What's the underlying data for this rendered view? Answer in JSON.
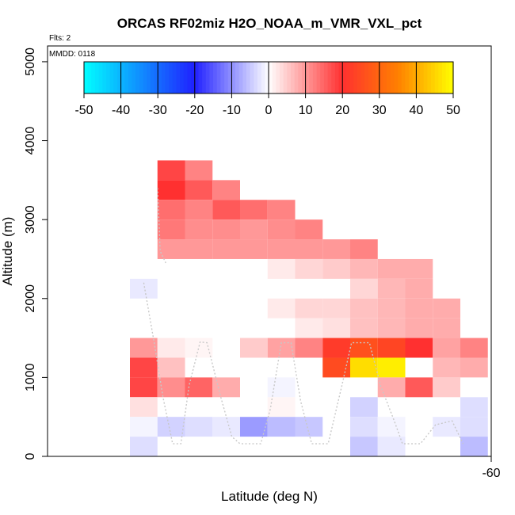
{
  "chart_data": {
    "type": "heatmap",
    "title": "ORCAS RF02miz H2O_NOAA_m_VMR_VXL_pct",
    "flights_note": "Flts: 2",
    "date_note": "MMDD: 0118",
    "xlabel": "Latitude (deg N)",
    "ylabel": "Altitude (m)",
    "x_ticks": [
      "-60"
    ],
    "y_ticks": [
      0,
      1000,
      2000,
      3000,
      4000,
      5000
    ],
    "ylim": [
      0,
      5200
    ],
    "colorbar": {
      "range": [
        -50,
        50
      ],
      "ticks": [
        -50,
        -40,
        -30,
        -20,
        -10,
        0,
        10,
        20,
        30,
        40,
        50
      ],
      "colors": {
        "low": "#00ffff",
        "mid_low": "#2020ff",
        "zero": "#ffffff",
        "mid_high": "#ff3030",
        "orange": "#ff8000",
        "high": "#ffff00"
      }
    },
    "column_count": 13,
    "altitude_bin_m": 250,
    "cells": [
      {
        "col": 1,
        "alt": 3500,
        "value": 18
      },
      {
        "col": 2,
        "alt": 3500,
        "value": 12
      },
      {
        "col": 1,
        "alt": 3250,
        "value": 20
      },
      {
        "col": 2,
        "alt": 3250,
        "value": 16
      },
      {
        "col": 3,
        "alt": 3250,
        "value": 12
      },
      {
        "col": 1,
        "alt": 3000,
        "value": 14
      },
      {
        "col": 2,
        "alt": 3000,
        "value": 12
      },
      {
        "col": 3,
        "alt": 3000,
        "value": 16
      },
      {
        "col": 4,
        "alt": 3000,
        "value": 14
      },
      {
        "col": 5,
        "alt": 3000,
        "value": 12
      },
      {
        "col": 1,
        "alt": 2750,
        "value": 13
      },
      {
        "col": 2,
        "alt": 2750,
        "value": 11
      },
      {
        "col": 3,
        "alt": 2750,
        "value": 11
      },
      {
        "col": 4,
        "alt": 2750,
        "value": 10
      },
      {
        "col": 5,
        "alt": 2750,
        "value": 11
      },
      {
        "col": 6,
        "alt": 2750,
        "value": 12
      },
      {
        "col": 1,
        "alt": 2500,
        "value": 10
      },
      {
        "col": 2,
        "alt": 2500,
        "value": 10
      },
      {
        "col": 3,
        "alt": 2500,
        "value": 10
      },
      {
        "col": 4,
        "alt": 2500,
        "value": 10
      },
      {
        "col": 5,
        "alt": 2500,
        "value": 10
      },
      {
        "col": 6,
        "alt": 2500,
        "value": 10
      },
      {
        "col": 7,
        "alt": 2500,
        "value": 10
      },
      {
        "col": 8,
        "alt": 2500,
        "value": 12
      },
      {
        "col": 5,
        "alt": 2250,
        "value": 2
      },
      {
        "col": 6,
        "alt": 2250,
        "value": 4
      },
      {
        "col": 7,
        "alt": 2250,
        "value": 5
      },
      {
        "col": 8,
        "alt": 2250,
        "value": 7
      },
      {
        "col": 9,
        "alt": 2250,
        "value": 8
      },
      {
        "col": 10,
        "alt": 2250,
        "value": 8
      },
      {
        "col": 0,
        "alt": 2000,
        "value": -2
      },
      {
        "col": 8,
        "alt": 2000,
        "value": 4
      },
      {
        "col": 9,
        "alt": 2000,
        "value": 7
      },
      {
        "col": 10,
        "alt": 2000,
        "value": 8
      },
      {
        "col": 5,
        "alt": 1750,
        "value": 2
      },
      {
        "col": 6,
        "alt": 1750,
        "value": 4
      },
      {
        "col": 7,
        "alt": 1750,
        "value": 4
      },
      {
        "col": 8,
        "alt": 1750,
        "value": 6
      },
      {
        "col": 9,
        "alt": 1750,
        "value": 7
      },
      {
        "col": 10,
        "alt": 1750,
        "value": 8
      },
      {
        "col": 11,
        "alt": 1750,
        "value": 8
      },
      {
        "col": 6,
        "alt": 1500,
        "value": 2
      },
      {
        "col": 7,
        "alt": 1500,
        "value": 3
      },
      {
        "col": 8,
        "alt": 1500,
        "value": 6
      },
      {
        "col": 9,
        "alt": 1500,
        "value": 7
      },
      {
        "col": 10,
        "alt": 1500,
        "value": 8
      },
      {
        "col": 11,
        "alt": 1500,
        "value": 8
      },
      {
        "col": 0,
        "alt": 1250,
        "value": 10
      },
      {
        "col": 1,
        "alt": 1250,
        "value": 2
      },
      {
        "col": 2,
        "alt": 1250,
        "value": 1
      },
      {
        "col": 4,
        "alt": 1250,
        "value": 5
      },
      {
        "col": 5,
        "alt": 1250,
        "value": 9
      },
      {
        "col": 6,
        "alt": 1250,
        "value": 12
      },
      {
        "col": 7,
        "alt": 1250,
        "value": 22
      },
      {
        "col": 8,
        "alt": 1250,
        "value": 26
      },
      {
        "col": 9,
        "alt": 1250,
        "value": 24
      },
      {
        "col": 10,
        "alt": 1250,
        "value": 20
      },
      {
        "col": 11,
        "alt": 1250,
        "value": 9
      },
      {
        "col": 12,
        "alt": 1250,
        "value": 12
      },
      {
        "col": 0,
        "alt": 1000,
        "value": 18
      },
      {
        "col": 1,
        "alt": 1000,
        "value": 6
      },
      {
        "col": 7,
        "alt": 1000,
        "value": 25
      },
      {
        "col": 8,
        "alt": 1000,
        "value": 46
      },
      {
        "col": 9,
        "alt": 1000,
        "value": 48
      },
      {
        "col": 11,
        "alt": 1000,
        "value": 7
      },
      {
        "col": 12,
        "alt": 1000,
        "value": 8
      },
      {
        "col": 0,
        "alt": 750,
        "value": 18
      },
      {
        "col": 1,
        "alt": 750,
        "value": 11
      },
      {
        "col": 2,
        "alt": 750,
        "value": 15
      },
      {
        "col": 3,
        "alt": 750,
        "value": 8
      },
      {
        "col": 5,
        "alt": 750,
        "value": -1
      },
      {
        "col": 9,
        "alt": 750,
        "value": 8
      },
      {
        "col": 10,
        "alt": 750,
        "value": 16
      },
      {
        "col": 11,
        "alt": 750,
        "value": 5
      },
      {
        "col": 0,
        "alt": 500,
        "value": 3
      },
      {
        "col": 5,
        "alt": 500,
        "value": 1
      },
      {
        "col": 8,
        "alt": 500,
        "value": -4
      },
      {
        "col": 12,
        "alt": 500,
        "value": -3
      },
      {
        "col": 0,
        "alt": 250,
        "value": -1
      },
      {
        "col": 1,
        "alt": 250,
        "value": -4
      },
      {
        "col": 2,
        "alt": 250,
        "value": -3
      },
      {
        "col": 3,
        "alt": 250,
        "value": -2
      },
      {
        "col": 4,
        "alt": 250,
        "value": -9
      },
      {
        "col": 5,
        "alt": 250,
        "value": -6
      },
      {
        "col": 6,
        "alt": 250,
        "value": -5
      },
      {
        "col": 8,
        "alt": 250,
        "value": -3
      },
      {
        "col": 9,
        "alt": 250,
        "value": -1
      },
      {
        "col": 11,
        "alt": 250,
        "value": -2
      },
      {
        "col": 12,
        "alt": 250,
        "value": -3
      },
      {
        "col": 0,
        "alt": 0,
        "value": -3
      },
      {
        "col": 8,
        "alt": 0,
        "value": -5
      },
      {
        "col": 9,
        "alt": 0,
        "value": -2
      },
      {
        "col": 12,
        "alt": 0,
        "value": -6
      }
    ],
    "flight_track": {
      "color": "#c8c8c8",
      "points": [
        [
          0.5,
          2200
        ],
        [
          0.9,
          1400
        ],
        [
          1.2,
          750
        ],
        [
          1.55,
          160
        ],
        [
          1.85,
          160
        ],
        [
          2.15,
          900
        ],
        [
          2.55,
          1450
        ],
        [
          2.8,
          1440
        ],
        [
          3.3,
          750
        ],
        [
          3.7,
          250
        ],
        [
          4.0,
          160
        ],
        [
          4.75,
          160
        ],
        [
          5.1,
          600
        ],
        [
          5.5,
          1440
        ],
        [
          5.85,
          1440
        ],
        [
          6.2,
          700
        ],
        [
          6.6,
          160
        ],
        [
          7.2,
          160
        ],
        [
          7.7,
          900
        ],
        [
          8.05,
          1440
        ],
        [
          8.7,
          1440
        ],
        [
          9.1,
          900
        ],
        [
          9.6,
          450
        ],
        [
          9.9,
          160
        ],
        [
          10.55,
          160
        ],
        [
          11.1,
          400
        ],
        [
          11.7,
          450
        ],
        [
          12.1,
          160
        ]
      ],
      "upper": [
        [
          1.0,
          3400
        ],
        [
          1.1,
          2600
        ],
        [
          1.3,
          2450
        ]
      ]
    }
  }
}
